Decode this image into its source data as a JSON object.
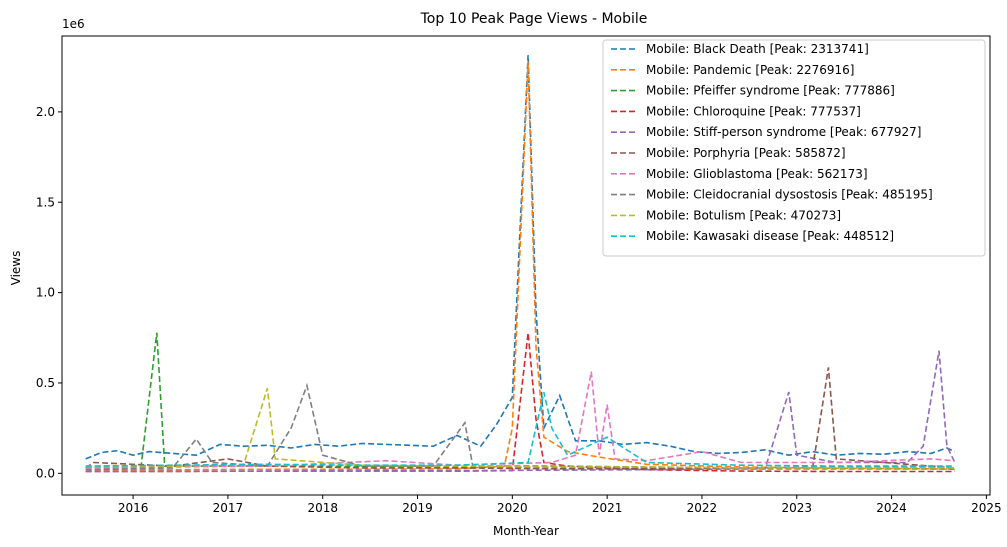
{
  "chart_data": {
    "type": "line",
    "title": "Top 10 Peak Page Views - Mobile",
    "xlabel": "Month-Year",
    "ylabel": "Views",
    "y_offset_label": "1e6",
    "xlim": [
      "2015-04-01",
      "2025-01-15"
    ],
    "ylim": [
      -0.12,
      2.42
    ],
    "y_unit_scale": 1000000,
    "x_ticks": [
      "2016",
      "2017",
      "2018",
      "2019",
      "2020",
      "2021",
      "2022",
      "2023",
      "2024",
      "2025"
    ],
    "y_ticks": [
      0.0,
      0.5,
      1.0,
      1.5,
      2.0
    ],
    "grid": false,
    "legend_position": "top-right",
    "line_style": "dashed",
    "series": [
      {
        "name": "Mobile: Black Death [Peak: 2313741]",
        "color": "#1f77b4",
        "points": [
          [
            "2015-07",
            80000
          ],
          [
            "2015-09",
            115000
          ],
          [
            "2015-11",
            125000
          ],
          [
            "2016-01",
            100000
          ],
          [
            "2016-03",
            120000
          ],
          [
            "2016-06",
            110000
          ],
          [
            "2016-09",
            100000
          ],
          [
            "2016-12",
            160000
          ],
          [
            "2017-03",
            150000
          ],
          [
            "2017-06",
            155000
          ],
          [
            "2017-09",
            140000
          ],
          [
            "2017-12",
            160000
          ],
          [
            "2018-03",
            150000
          ],
          [
            "2018-06",
            165000
          ],
          [
            "2018-09",
            160000
          ],
          [
            "2018-12",
            155000
          ],
          [
            "2019-03",
            150000
          ],
          [
            "2019-06",
            210000
          ],
          [
            "2019-09",
            150000
          ],
          [
            "2019-11",
            270000
          ],
          [
            "2020-01",
            420000
          ],
          [
            "2020-03",
            2313741
          ],
          [
            "2020-04",
            900000
          ],
          [
            "2020-05",
            250000
          ],
          [
            "2020-07",
            430000
          ],
          [
            "2020-09",
            180000
          ],
          [
            "2020-12",
            180000
          ],
          [
            "2021-03",
            160000
          ],
          [
            "2021-06",
            170000
          ],
          [
            "2021-09",
            150000
          ],
          [
            "2021-12",
            120000
          ],
          [
            "2022-03",
            110000
          ],
          [
            "2022-06",
            115000
          ],
          [
            "2022-09",
            130000
          ],
          [
            "2022-12",
            100000
          ],
          [
            "2023-03",
            120000
          ],
          [
            "2023-06",
            100000
          ],
          [
            "2023-09",
            110000
          ],
          [
            "2023-12",
            105000
          ],
          [
            "2024-03",
            120000
          ],
          [
            "2024-06",
            110000
          ],
          [
            "2024-08",
            140000
          ],
          [
            "2024-09",
            120000
          ]
        ]
      },
      {
        "name": "Mobile: Pandemic [Peak: 2276916]",
        "color": "#ff7f0e",
        "points": [
          [
            "2015-07",
            20000
          ],
          [
            "2016-06",
            20000
          ],
          [
            "2017-06",
            22000
          ],
          [
            "2018-06",
            22000
          ],
          [
            "2019-06",
            25000
          ],
          [
            "2019-12",
            40000
          ],
          [
            "2020-01",
            250000
          ],
          [
            "2020-03",
            2276916
          ],
          [
            "2020-04",
            700000
          ],
          [
            "2020-05",
            200000
          ],
          [
            "2020-08",
            120000
          ],
          [
            "2020-12",
            90000
          ],
          [
            "2021-06",
            50000
          ],
          [
            "2022-06",
            35000
          ],
          [
            "2023-06",
            28000
          ],
          [
            "2024-06",
            25000
          ],
          [
            "2024-09",
            22000
          ]
        ]
      },
      {
        "name": "Mobile: Pfeiffer syndrome [Peak: 777886]",
        "color": "#2ca02c",
        "points": [
          [
            "2015-07",
            30000
          ],
          [
            "2016-02",
            35000
          ],
          [
            "2016-04",
            777886
          ],
          [
            "2016-05",
            40000
          ],
          [
            "2017-06",
            40000
          ],
          [
            "2018-06",
            38000
          ],
          [
            "2019-06",
            35000
          ],
          [
            "2020-06",
            30000
          ],
          [
            "2021-06",
            28000
          ],
          [
            "2022-06",
            25000
          ],
          [
            "2023-06",
            25000
          ],
          [
            "2024-06",
            25000
          ],
          [
            "2024-09",
            25000
          ]
        ]
      },
      {
        "name": "Mobile: Chloroquine [Peak: 777537]",
        "color": "#d62728",
        "points": [
          [
            "2015-07",
            10000
          ],
          [
            "2016-06",
            10000
          ],
          [
            "2017-06",
            12000
          ],
          [
            "2018-06",
            12000
          ],
          [
            "2019-06",
            12000
          ],
          [
            "2020-01",
            15000
          ],
          [
            "2020-03",
            777537
          ],
          [
            "2020-04",
            300000
          ],
          [
            "2020-05",
            60000
          ],
          [
            "2020-08",
            40000
          ],
          [
            "2021-06",
            20000
          ],
          [
            "2022-06",
            12000
          ],
          [
            "2023-06",
            10000
          ],
          [
            "2024-06",
            10000
          ],
          [
            "2024-09",
            10000
          ]
        ]
      },
      {
        "name": "Mobile: Stiff-person syndrome [Peak: 677927]",
        "color": "#9467bd",
        "points": [
          [
            "2015-07",
            10000
          ],
          [
            "2017-06",
            12000
          ],
          [
            "2019-06",
            15000
          ],
          [
            "2021-06",
            20000
          ],
          [
            "2022-09",
            25000
          ],
          [
            "2022-12",
            450000
          ],
          [
            "2023-01",
            100000
          ],
          [
            "2023-06",
            60000
          ],
          [
            "2024-03",
            60000
          ],
          [
            "2024-05",
            150000
          ],
          [
            "2024-07",
            677927
          ],
          [
            "2024-08",
            150000
          ],
          [
            "2024-09",
            60000
          ]
        ]
      },
      {
        "name": "Mobile: Porphyria [Peak: 585872]",
        "color": "#8c564b",
        "points": [
          [
            "2015-07",
            30000
          ],
          [
            "2015-08",
            60000
          ],
          [
            "2016-06",
            40000
          ],
          [
            "2017-01",
            80000
          ],
          [
            "2017-06",
            40000
          ],
          [
            "2018-06",
            30000
          ],
          [
            "2019-06",
            30000
          ],
          [
            "2020-06",
            25000
          ],
          [
            "2021-06",
            25000
          ],
          [
            "2022-06",
            30000
          ],
          [
            "2023-03",
            30000
          ],
          [
            "2023-05",
            585872
          ],
          [
            "2023-06",
            80000
          ],
          [
            "2024-06",
            40000
          ],
          [
            "2024-09",
            30000
          ]
        ]
      },
      {
        "name": "Mobile: Glioblastoma [Peak: 562173]",
        "color": "#e377c2",
        "points": [
          [
            "2015-07",
            30000
          ],
          [
            "2016-06",
            35000
          ],
          [
            "2017-06",
            40000
          ],
          [
            "2018-09",
            70000
          ],
          [
            "2019-06",
            45000
          ],
          [
            "2020-06",
            60000
          ],
          [
            "2020-09",
            100000
          ],
          [
            "2020-11",
            562173
          ],
          [
            "2020-12",
            100000
          ],
          [
            "2021-01",
            380000
          ],
          [
            "2021-02",
            80000
          ],
          [
            "2021-06",
            70000
          ],
          [
            "2022-01",
            120000
          ],
          [
            "2022-06",
            60000
          ],
          [
            "2023-06",
            60000
          ],
          [
            "2024-06",
            80000
          ],
          [
            "2024-09",
            70000
          ]
        ]
      },
      {
        "name": "Mobile: Cleidocranial dysostosis [Peak: 485195]",
        "color": "#7f7f7f",
        "points": [
          [
            "2015-07",
            20000
          ],
          [
            "2016-06",
            30000
          ],
          [
            "2016-09",
            190000
          ],
          [
            "2016-11",
            60000
          ],
          [
            "2017-06",
            40000
          ],
          [
            "2017-09",
            250000
          ],
          [
            "2017-11",
            485195
          ],
          [
            "2018-01",
            100000
          ],
          [
            "2018-06",
            40000
          ],
          [
            "2019-03",
            40000
          ],
          [
            "2019-07",
            280000
          ],
          [
            "2019-08",
            40000
          ],
          [
            "2020-06",
            40000
          ],
          [
            "2021-06",
            35000
          ],
          [
            "2022-06",
            30000
          ],
          [
            "2023-06",
            35000
          ],
          [
            "2024-06",
            35000
          ],
          [
            "2024-09",
            30000
          ]
        ]
      },
      {
        "name": "Mobile: Botulism [Peak: 470273]",
        "color": "#bcbd22",
        "points": [
          [
            "2015-07",
            40000
          ],
          [
            "2016-06",
            40000
          ],
          [
            "2017-03",
            50000
          ],
          [
            "2017-06",
            470273
          ],
          [
            "2017-07",
            80000
          ],
          [
            "2018-06",
            45000
          ],
          [
            "2019-06",
            40000
          ],
          [
            "2020-06",
            35000
          ],
          [
            "2021-06",
            35000
          ],
          [
            "2022-06",
            30000
          ],
          [
            "2023-06",
            30000
          ],
          [
            "2024-06",
            30000
          ],
          [
            "2024-09",
            30000
          ]
        ]
      },
      {
        "name": "Mobile: Kawasaki disease [Peak: 448512]",
        "color": "#17becf",
        "points": [
          [
            "2015-07",
            40000
          ],
          [
            "2016-06",
            45000
          ],
          [
            "2017-06",
            50000
          ],
          [
            "2018-06",
            45000
          ],
          [
            "2019-06",
            45000
          ],
          [
            "2020-03",
            60000
          ],
          [
            "2020-05",
            448512
          ],
          [
            "2020-06",
            250000
          ],
          [
            "2020-08",
            100000
          ],
          [
            "2021-01",
            200000
          ],
          [
            "2021-06",
            60000
          ],
          [
            "2022-06",
            45000
          ],
          [
            "2023-06",
            40000
          ],
          [
            "2024-06",
            40000
          ],
          [
            "2024-09",
            40000
          ]
        ]
      }
    ]
  }
}
